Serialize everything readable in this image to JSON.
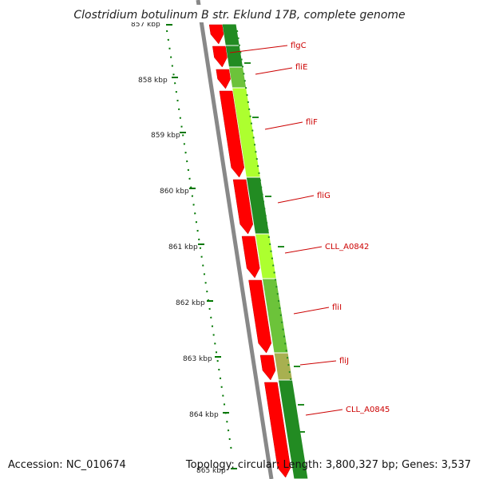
{
  "title": "Clostridium botulinum B str. Eklund 17B, complete genome",
  "footer": {
    "accession": "Accession: NC_010674",
    "topology": "Topology: circular; Length: 3,800,327 bp; Genes: 3,537"
  },
  "ruler": {
    "ticks": [
      "857 kbp",
      "858 kbp",
      "859 kbp",
      "860 kbp",
      "861 kbp",
      "862 kbp",
      "863 kbp",
      "864 kbp",
      "865 kbp"
    ]
  },
  "genes": [
    {
      "name": "flgC"
    },
    {
      "name": "fliE"
    },
    {
      "name": "fliF"
    },
    {
      "name": "fliG"
    },
    {
      "name": "CLL_A0842"
    },
    {
      "name": "fliI"
    },
    {
      "name": "fliJ"
    },
    {
      "name": "CLL_A0845"
    }
  ],
  "colors": {
    "cds": "#ff0000",
    "backbone": "#888888",
    "gc_dark": "#228b22",
    "gc_light": "#adff2f",
    "tick": "#007700",
    "label": "#cc0000"
  }
}
